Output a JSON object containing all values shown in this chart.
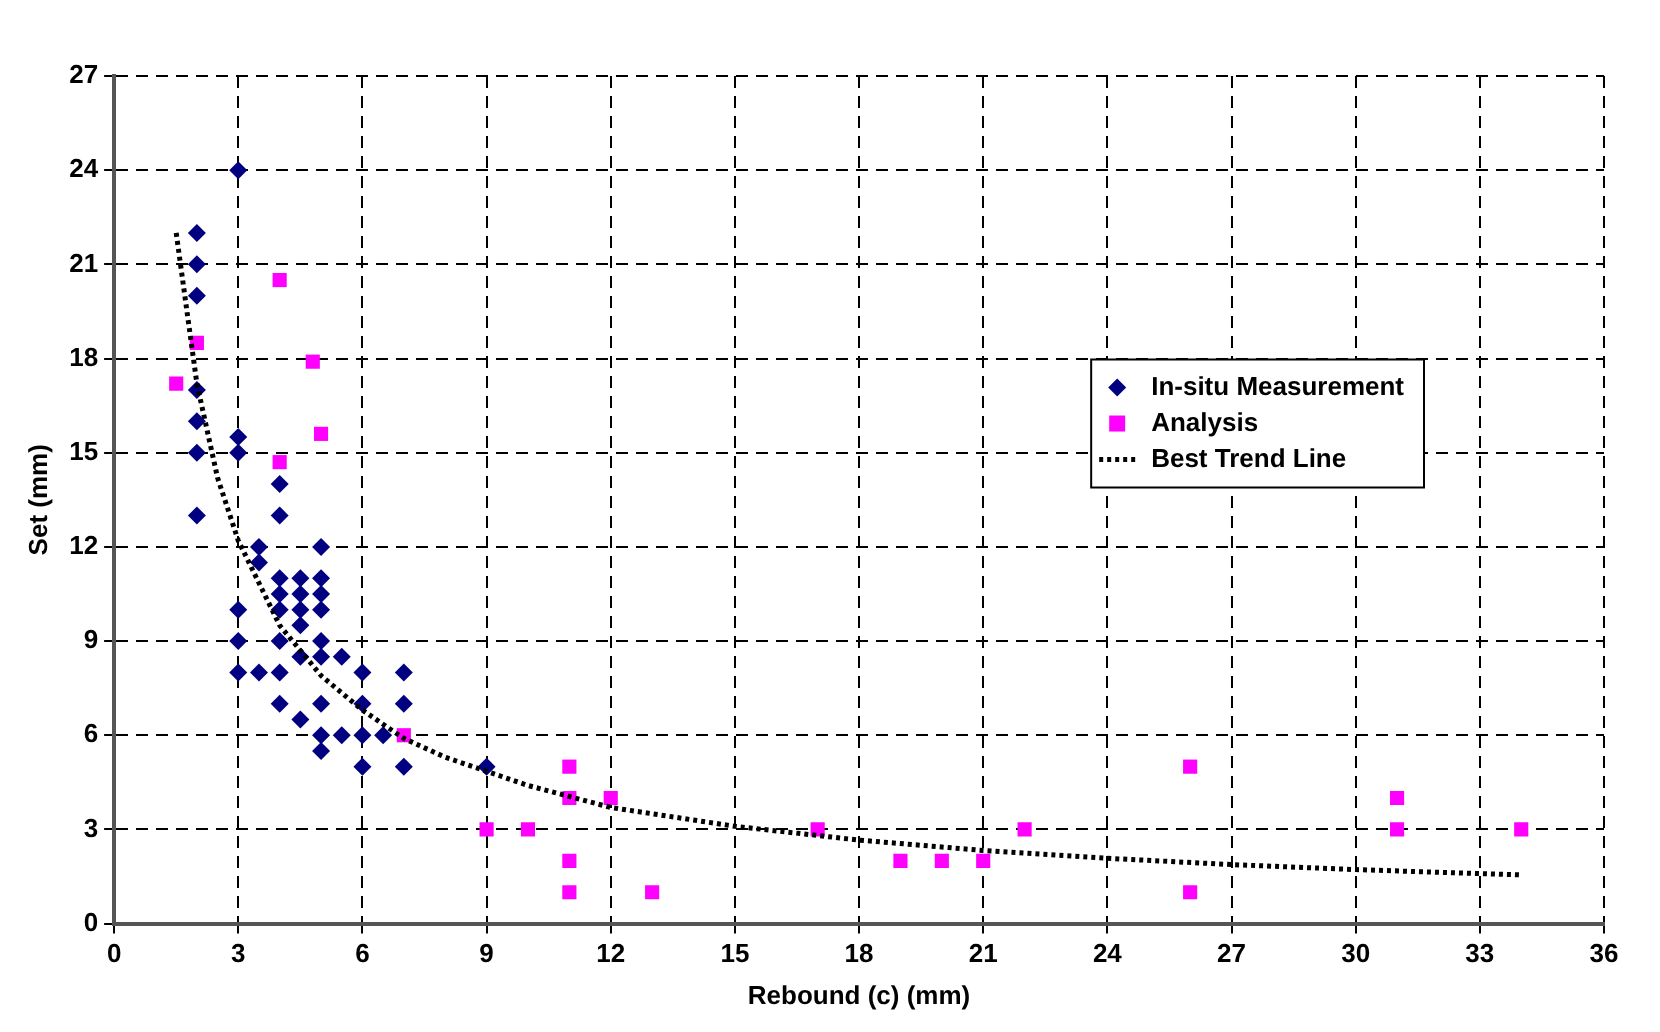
{
  "chart_data": {
    "type": "scatter",
    "xlabel": "Rebound (c) (mm)",
    "ylabel": "Set (mm)",
    "xlim": [
      0,
      36
    ],
    "xticks": [
      0,
      3,
      6,
      9,
      12,
      15,
      18,
      21,
      24,
      27,
      30,
      33,
      36
    ],
    "ylim": [
      0,
      27
    ],
    "yticks": [
      0,
      3,
      6,
      9,
      12,
      15,
      18,
      21,
      24,
      27
    ],
    "grid": true,
    "legend": "right",
    "series": [
      {
        "name": "In-situ Measurement",
        "color": "#000080",
        "marker": "diamond",
        "x": [
          3,
          2,
          2,
          2,
          2,
          2,
          2,
          2,
          3,
          3,
          3,
          3,
          3,
          3.5,
          3.5,
          3.5,
          4,
          4,
          4,
          4,
          4,
          4,
          4,
          4,
          4.5,
          4.5,
          4.5,
          4.5,
          4.5,
          4.5,
          5,
          5,
          5,
          5,
          5,
          5,
          5,
          5,
          5,
          5.5,
          5.5,
          6,
          6,
          6,
          6,
          6.5,
          7,
          7,
          7,
          9
        ],
        "values": [
          24,
          22,
          21,
          20,
          17,
          16,
          15,
          13,
          15.5,
          15,
          10,
          9,
          8,
          12,
          11.5,
          8,
          14,
          13,
          11,
          10.5,
          10,
          9,
          8,
          7,
          11,
          10.5,
          10,
          9.5,
          8.5,
          6.5,
          12,
          11,
          10.5,
          10,
          9,
          8.5,
          7,
          6,
          5.5,
          8.5,
          6,
          8,
          7,
          6,
          5,
          6,
          8,
          7,
          5,
          5
        ]
      },
      {
        "name": "Analysis",
        "color": "#ff00ff",
        "marker": "square",
        "x": [
          1.5,
          2,
          4,
          4.8,
          5,
          4,
          7,
          9,
          10,
          11,
          11,
          12,
          11,
          11,
          13,
          17,
          19,
          20,
          21,
          22,
          26,
          26,
          31,
          31,
          34
        ],
        "values": [
          17.2,
          18.5,
          20.5,
          17.9,
          15.6,
          14.7,
          6,
          3,
          3,
          5,
          4,
          4,
          2,
          1,
          1,
          3,
          2,
          2,
          2,
          3,
          5,
          1,
          4,
          3,
          3
        ]
      },
      {
        "name": "Best Trend Line",
        "type": "line",
        "color": "#000000",
        "marker": "none",
        "line_style": "dotted",
        "x": [
          1.5,
          2,
          2.5,
          3,
          4,
          5,
          6,
          7,
          8,
          10,
          12,
          15,
          18,
          21,
          24,
          27,
          30,
          34
        ],
        "values": [
          22,
          17.2,
          14.2,
          12.2,
          9.5,
          7.9,
          6.8,
          5.9,
          5.3,
          4.4,
          3.7,
          3.1,
          2.66,
          2.33,
          2.08,
          1.88,
          1.72,
          1.55
        ]
      }
    ]
  }
}
